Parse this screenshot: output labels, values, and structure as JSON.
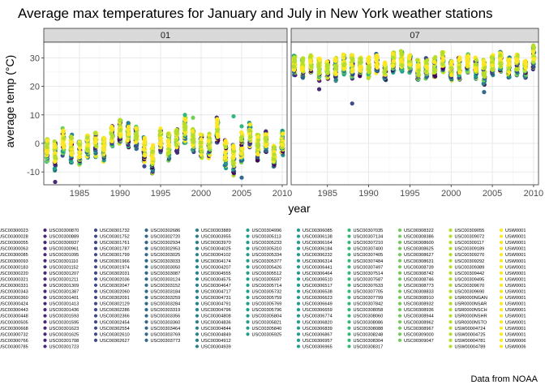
{
  "chart_data": {
    "type": "scatter",
    "title": "Average max temperatures for January and July in New York weather stations",
    "xlabel": "year",
    "ylabel": "average temp (°C)",
    "caption": "Data from NOAA",
    "xlim": [
      1980.6,
      2010.6
    ],
    "ylim": [
      -14.5,
      35.5
    ],
    "x_ticks": [
      1985,
      1990,
      1995,
      2000,
      2005,
      2010
    ],
    "y_ticks": [
      -10,
      0,
      10,
      20,
      30
    ],
    "grid": true,
    "legend_position": "bottom",
    "facets": [
      {
        "label": "01",
        "summary": [
          [
            1981,
            -6.5,
            1.5
          ],
          [
            1982,
            -9.5,
            0.5
          ],
          [
            1983,
            -4,
            5
          ],
          [
            1984,
            -7,
            3
          ],
          [
            1985,
            -7.5,
            1
          ],
          [
            1986,
            -5,
            3
          ],
          [
            1987,
            -4.5,
            4
          ],
          [
            1988,
            -6,
            2
          ],
          [
            1989,
            -1,
            6
          ],
          [
            1990,
            0,
            8.5
          ],
          [
            1991,
            -1,
            7
          ],
          [
            1992,
            -2,
            5.5
          ],
          [
            1993,
            -6.5,
            2
          ],
          [
            1994,
            -10.5,
            -1
          ],
          [
            1995,
            -3,
            5
          ],
          [
            1996,
            -6,
            3.5
          ],
          [
            1997,
            -3,
            5
          ],
          [
            1998,
            0,
            9
          ],
          [
            1999,
            -3,
            5
          ],
          [
            2000,
            -5,
            3
          ],
          [
            2001,
            -5,
            3
          ],
          [
            2002,
            0,
            9
          ],
          [
            2003,
            -8.5,
            1
          ],
          [
            2004,
            -11,
            -0.5
          ],
          [
            2005,
            -6.5,
            3.5
          ],
          [
            2006,
            -1,
            7
          ],
          [
            2007,
            -6,
            3
          ],
          [
            2008,
            -3,
            4
          ],
          [
            2009,
            -8,
            -1
          ],
          [
            2010,
            -4,
            4.5
          ]
        ],
        "outliers": [
          [
            1982,
            -13.5
          ],
          [
            1993,
            -8
          ],
          [
            1998,
            10
          ],
          [
            1999,
            9
          ],
          [
            2004,
            9.5
          ],
          [
            2005,
            -12
          ],
          [
            2005,
            6
          ]
        ]
      },
      {
        "label": "07",
        "summary": [
          [
            1981,
            24,
            31
          ],
          [
            1982,
            23,
            30
          ],
          [
            1983,
            25,
            31
          ],
          [
            1984,
            22,
            30
          ],
          [
            1985,
            23,
            29
          ],
          [
            1986,
            22,
            30
          ],
          [
            1987,
            24,
            31
          ],
          [
            1988,
            23,
            31
          ],
          [
            1989,
            24,
            30
          ],
          [
            1990,
            23,
            30
          ],
          [
            1991,
            25,
            31
          ],
          [
            1992,
            22,
            28
          ],
          [
            1993,
            25,
            32
          ],
          [
            1994,
            25,
            32
          ],
          [
            1995,
            25,
            31
          ],
          [
            1996,
            22,
            29
          ],
          [
            1997,
            23,
            30
          ],
          [
            1998,
            23,
            30
          ],
          [
            1999,
            25,
            32
          ],
          [
            2000,
            22,
            29
          ],
          [
            2001,
            22,
            30
          ],
          [
            2002,
            25,
            31
          ],
          [
            2003,
            23,
            30
          ],
          [
            2004,
            21,
            29
          ],
          [
            2005,
            24,
            31
          ],
          [
            2006,
            25,
            32
          ],
          [
            2007,
            23,
            30
          ],
          [
            2008,
            24,
            31
          ],
          [
            2009,
            23,
            29
          ],
          [
            2010,
            26,
            34
          ]
        ],
        "outliers": [
          [
            1984,
            19
          ],
          [
            1988,
            14
          ],
          [
            2004,
            18
          ]
        ]
      }
    ],
    "series_palette": [
      "#440154",
      "#482878",
      "#3e4a89",
      "#31688e",
      "#26828e",
      "#1f9e89",
      "#35b779",
      "#6ece58",
      "#b5de2b",
      "#fde725"
    ],
    "legend_columns": [
      [
        "USC00300023",
        "USC00300028",
        "USC00300055",
        "USC00300063",
        "USC00300085",
        "USC00300093",
        "USC00300183",
        "USC00300220",
        "USC00300321",
        "USC00300331",
        "USC00300343",
        "USC00300360",
        "USC00300424",
        "USC00300443",
        "USC00300448",
        "USC00300505",
        "USC00300668",
        "USC00300732",
        "USC00300766",
        "USC00300785"
      ],
      [
        "USC00300870",
        "USC00300889",
        "USC00300937",
        "USC00300961",
        "USC00301095",
        "USC00301110",
        "USC00301152",
        "USC00301207",
        "USC00301211",
        "USC00301309",
        "USC00301387",
        "USC00301401",
        "USC00301413",
        "USC00301436",
        "USC00301593",
        "USC00301595",
        "USC00301623",
        "USC00301625",
        "USC00301708",
        "USC00301723"
      ],
      [
        "USC00301732",
        "USC00301752",
        "USC00301761",
        "USC00301787",
        "USC00301799",
        "USC00301966",
        "USC00301974",
        "USC00302031",
        "USC00302036",
        "USC00302047",
        "USC00302060",
        "USC00302091",
        "USC00302129",
        "USC00302286",
        "USC00302366",
        "USC00302454",
        "USC00302554",
        "USC00302610",
        "USC00302627"
      ],
      [
        "USC00302686",
        "USC00302720",
        "USC00302934",
        "USC00302953",
        "USC00303025",
        "USC00303033",
        "USC00303050",
        "USC00303087",
        "USC00303124",
        "USC00303152",
        "USC00303184",
        "USC00303259",
        "USC00303284",
        "USC00303319",
        "USC00303356",
        "USC00303360",
        "USC00303464",
        "USC00303769",
        "USC00303773"
      ],
      [
        "USC00303889",
        "USC00303955",
        "USC00303970",
        "USC00304025",
        "USC00304102",
        "USC00304174",
        "USC00304207",
        "USC00304555",
        "USC00304575",
        "USC00304647",
        "USC00304717",
        "USC00304731",
        "USC00304791",
        "USC00304796",
        "USC00304808",
        "USC00304836",
        "USC00304844",
        "USC00304849",
        "USC00304912",
        "USC00304939"
      ],
      [
        "USC00304996",
        "USC00305113",
        "USC00305233",
        "USC00305310",
        "USC00305334",
        "USC00305377",
        "USC00305426",
        "USC00305512",
        "USC00305597",
        "USC00305714",
        "USC00305732",
        "USC00305759",
        "USC00305769",
        "USC00305796",
        "USC00305804",
        "USC00305821",
        "USC00305840",
        "USC00305925"
      ],
      [
        "USC00306085",
        "USC00306138",
        "USC00306164",
        "USC00306184",
        "USC00306232",
        "USC00306314",
        "USC00306441",
        "USC00306464",
        "USC00306510",
        "USC00306517",
        "USC00306538",
        "USC00306623",
        "USC00306649",
        "USC00306659",
        "USC00306774",
        "USC00306820",
        "USC00306839",
        "USC00306867",
        "USC00306957",
        "USC00306965"
      ],
      [
        "USC00307035",
        "USC00307134",
        "USC00307210",
        "USC00307400",
        "USC00307405",
        "USC00307484",
        "USC00307497",
        "USC00307514",
        "USC00307587",
        "USC00307633",
        "USC00307705",
        "USC00307799",
        "USC00307842",
        "USC00308058",
        "USC00308060",
        "USC00308086",
        "USC00308088",
        "USC00308248",
        "USC00308304",
        "USC00308317"
      ],
      [
        "USC00308322",
        "USC00308386",
        "USC00308600",
        "USC00308625",
        "USC00308627",
        "USC00308631",
        "USC00308739",
        "USC00308742",
        "USC00308746",
        "USC00308773",
        "USC00308833",
        "USC00308910",
        "USC00308932",
        "USC00308936",
        "USC00308944",
        "USC00308962",
        "USC00308967",
        "USC00309000",
        "USC00309047"
      ],
      [
        "USC00309055",
        "USC00309072",
        "USC00309117",
        "USC00309189",
        "USC00309270",
        "USC00309292",
        "USC00309389",
        "USC00309442",
        "USC00309495",
        "USC00309670",
        "USC00309690",
        "USR0000NGAN",
        "USR0000NSAR",
        "USR0000NSCH",
        "USR0000NSHR",
        "USR0000NSTO",
        "USW00004724",
        "USW00004725",
        "USW00004781",
        "USW00004789"
      ],
      [
        "USW0001",
        "USW0001",
        "USW0001",
        "USW0001",
        "USW0001",
        "USW0001",
        "USW0001",
        "USW0001",
        "USW0001",
        "USW0001",
        "USW0001",
        "USW0001",
        "USW0001",
        "USW0001",
        "USW0001",
        "USW0001",
        "USW0001",
        "USW0001",
        "USW0006",
        "USW0006"
      ]
    ]
  }
}
